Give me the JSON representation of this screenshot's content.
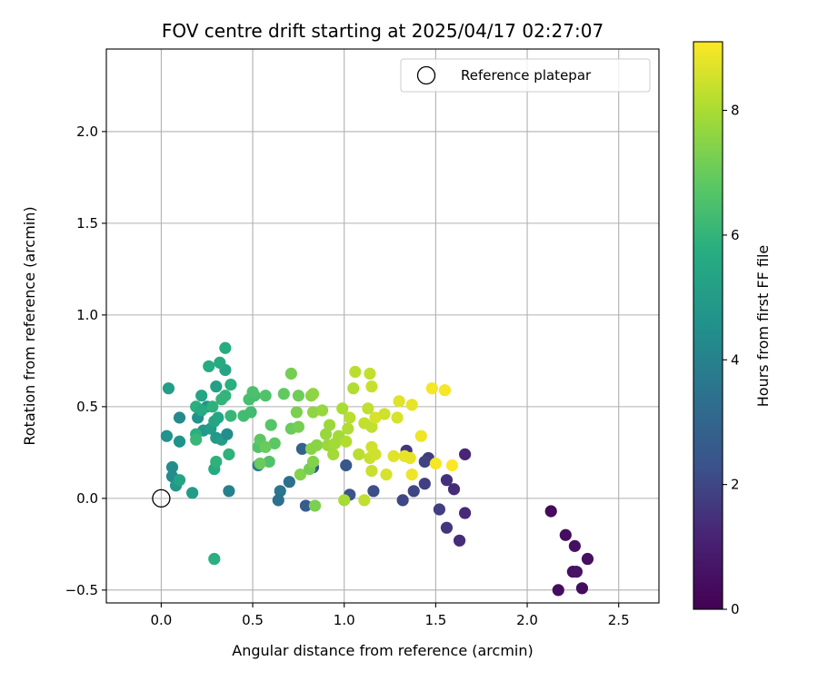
{
  "chart_data": {
    "type": "scatter",
    "title": "FOV centre drift starting at 2025/04/17 02:27:07",
    "xlabel": "Angular distance from reference (arcmin)",
    "ylabel": "Rotation from reference (arcmin)",
    "xlim": [
      -0.3,
      2.72
    ],
    "ylim": [
      -0.57,
      2.45
    ],
    "xticks": [
      "0.0",
      "0.5",
      "1.0",
      "1.5",
      "2.0",
      "2.5"
    ],
    "xtick_values": [
      0,
      0.5,
      1.0,
      1.5,
      2.0,
      2.5
    ],
    "yticks": [
      "−0.5",
      "0.0",
      "0.5",
      "1.0",
      "1.5",
      "2.0"
    ],
    "ytick_values": [
      -0.5,
      0,
      0.5,
      1.0,
      1.5,
      2.0
    ],
    "grid": true,
    "legend": {
      "placement": "top-right",
      "entries": [
        "Reference platepar"
      ]
    },
    "reference_point": {
      "x": 0.0,
      "y": 0.0
    },
    "colorbar": {
      "label": "Hours from first FF file",
      "range": [
        0,
        9.1
      ],
      "ticks": [
        "0",
        "2",
        "4",
        "6",
        "8"
      ],
      "tick_values": [
        0,
        2,
        4,
        6,
        8
      ],
      "colormap": "viridis"
    },
    "points": [
      {
        "x": 2.13,
        "y": -0.07,
        "t": 0.3
      },
      {
        "x": 2.21,
        "y": -0.2,
        "t": 0.4
      },
      {
        "x": 2.26,
        "y": -0.26,
        "t": 0.5
      },
      {
        "x": 2.33,
        "y": -0.33,
        "t": 0.5
      },
      {
        "x": 2.25,
        "y": -0.4,
        "t": 0.5
      },
      {
        "x": 2.27,
        "y": -0.4,
        "t": 0.6
      },
      {
        "x": 2.17,
        "y": -0.5,
        "t": 0.4
      },
      {
        "x": 2.3,
        "y": -0.49,
        "t": 0.4
      },
      {
        "x": 1.66,
        "y": 0.24,
        "t": 1.2
      },
      {
        "x": 1.66,
        "y": -0.08,
        "t": 1.3
      },
      {
        "x": 1.63,
        "y": -0.23,
        "t": 1.4
      },
      {
        "x": 1.6,
        "y": 0.05,
        "t": 1.4
      },
      {
        "x": 1.56,
        "y": 0.1,
        "t": 1.5
      },
      {
        "x": 1.56,
        "y": -0.16,
        "t": 1.6
      },
      {
        "x": 1.52,
        "y": -0.06,
        "t": 1.8
      },
      {
        "x": 1.46,
        "y": 0.22,
        "t": 1.7
      },
      {
        "x": 1.44,
        "y": 0.2,
        "t": 1.9
      },
      {
        "x": 1.44,
        "y": 0.08,
        "t": 1.8
      },
      {
        "x": 1.38,
        "y": 0.04,
        "t": 2.0
      },
      {
        "x": 1.34,
        "y": 0.26,
        "t": 1.6
      },
      {
        "x": 1.32,
        "y": -0.01,
        "t": 2.0
      },
      {
        "x": 1.16,
        "y": 0.04,
        "t": 2.2
      },
      {
        "x": 1.03,
        "y": 0.02,
        "t": 2.4
      },
      {
        "x": 1.01,
        "y": 0.18,
        "t": 2.5
      },
      {
        "x": 0.83,
        "y": 0.17,
        "t": 2.6
      },
      {
        "x": 0.79,
        "y": -0.04,
        "t": 2.7
      },
      {
        "x": 0.77,
        "y": 0.27,
        "t": 2.9
      },
      {
        "x": 0.7,
        "y": 0.09,
        "t": 3.4
      },
      {
        "x": 0.65,
        "y": 0.04,
        "t": 3.6
      },
      {
        "x": 0.64,
        "y": -0.01,
        "t": 3.4
      },
      {
        "x": 0.53,
        "y": 0.18,
        "t": 3.7
      },
      {
        "x": 0.37,
        "y": 0.04,
        "t": 4.0
      },
      {
        "x": 0.1,
        "y": 0.44,
        "t": 4.3
      },
      {
        "x": 0.06,
        "y": 0.12,
        "t": 4.3
      },
      {
        "x": 0.06,
        "y": 0.17,
        "t": 4.4
      },
      {
        "x": 0.03,
        "y": 0.34,
        "t": 4.6
      },
      {
        "x": 0.1,
        "y": 0.31,
        "t": 4.6
      },
      {
        "x": 0.08,
        "y": 0.07,
        "t": 4.8
      },
      {
        "x": 0.17,
        "y": 0.03,
        "t": 5.0
      },
      {
        "x": 0.04,
        "y": 0.6,
        "t": 5.1
      },
      {
        "x": 0.2,
        "y": 0.44,
        "t": 4.6
      },
      {
        "x": 0.25,
        "y": 0.5,
        "t": 4.7
      },
      {
        "x": 0.23,
        "y": 0.37,
        "t": 4.8
      },
      {
        "x": 0.27,
        "y": 0.38,
        "t": 5.0
      },
      {
        "x": 0.3,
        "y": 0.33,
        "t": 4.9
      },
      {
        "x": 0.33,
        "y": 0.32,
        "t": 5.0
      },
      {
        "x": 0.36,
        "y": 0.35,
        "t": 4.4
      },
      {
        "x": 0.1,
        "y": 0.1,
        "t": 5.3
      },
      {
        "x": 0.3,
        "y": 0.61,
        "t": 5.2
      },
      {
        "x": 0.22,
        "y": 0.56,
        "t": 5.4
      },
      {
        "x": 0.29,
        "y": 0.42,
        "t": 5.4
      },
      {
        "x": 0.31,
        "y": 0.44,
        "t": 5.4
      },
      {
        "x": 0.35,
        "y": 0.7,
        "t": 5.4
      },
      {
        "x": 0.32,
        "y": 0.74,
        "t": 5.6
      },
      {
        "x": 0.26,
        "y": 0.72,
        "t": 5.7
      },
      {
        "x": 0.35,
        "y": 0.82,
        "t": 5.7
      },
      {
        "x": 0.38,
        "y": 0.62,
        "t": 5.8
      },
      {
        "x": 0.19,
        "y": 0.5,
        "t": 5.8
      },
      {
        "x": 0.22,
        "y": 0.48,
        "t": 5.6
      },
      {
        "x": 0.19,
        "y": 0.35,
        "t": 5.8
      },
      {
        "x": 0.29,
        "y": 0.16,
        "t": 5.6
      },
      {
        "x": 0.3,
        "y": 0.2,
        "t": 5.9
      },
      {
        "x": 0.37,
        "y": 0.24,
        "t": 5.9
      },
      {
        "x": 0.28,
        "y": 0.5,
        "t": 5.9
      },
      {
        "x": 0.33,
        "y": 0.54,
        "t": 6.0
      },
      {
        "x": 0.35,
        "y": 0.56,
        "t": 6.0
      },
      {
        "x": 0.19,
        "y": 0.32,
        "t": 6.1
      },
      {
        "x": 0.29,
        "y": -0.33,
        "t": 5.8
      },
      {
        "x": 0.38,
        "y": 0.45,
        "t": 6.1
      },
      {
        "x": 0.45,
        "y": 0.45,
        "t": 6.3
      },
      {
        "x": 0.49,
        "y": 0.47,
        "t": 6.3
      },
      {
        "x": 0.48,
        "y": 0.54,
        "t": 6.4
      },
      {
        "x": 0.51,
        "y": 0.56,
        "t": 6.4
      },
      {
        "x": 0.5,
        "y": 0.58,
        "t": 6.5
      },
      {
        "x": 0.57,
        "y": 0.56,
        "t": 6.6
      },
      {
        "x": 0.6,
        "y": 0.4,
        "t": 6.7
      },
      {
        "x": 0.62,
        "y": 0.3,
        "t": 6.8
      },
      {
        "x": 0.59,
        "y": 0.2,
        "t": 6.6
      },
      {
        "x": 0.53,
        "y": 0.28,
        "t": 6.6
      },
      {
        "x": 0.54,
        "y": 0.32,
        "t": 6.8
      },
      {
        "x": 0.57,
        "y": 0.28,
        "t": 7.0
      },
      {
        "x": 0.54,
        "y": 0.19,
        "t": 7.0
      },
      {
        "x": 0.67,
        "y": 0.57,
        "t": 6.9
      },
      {
        "x": 0.71,
        "y": 0.68,
        "t": 7.2
      },
      {
        "x": 0.75,
        "y": 0.56,
        "t": 7.1
      },
      {
        "x": 0.71,
        "y": 0.38,
        "t": 7.0
      },
      {
        "x": 0.74,
        "y": 0.47,
        "t": 7.3
      },
      {
        "x": 0.75,
        "y": 0.39,
        "t": 7.2
      },
      {
        "x": 0.76,
        "y": 0.13,
        "t": 7.4
      },
      {
        "x": 0.81,
        "y": 0.16,
        "t": 7.2
      },
      {
        "x": 0.83,
        "y": 0.2,
        "t": 7.4
      },
      {
        "x": 0.84,
        "y": -0.04,
        "t": 7.3
      },
      {
        "x": 0.82,
        "y": 0.27,
        "t": 7.5
      },
      {
        "x": 0.85,
        "y": 0.29,
        "t": 7.5
      },
      {
        "x": 0.82,
        "y": 0.56,
        "t": 7.5
      },
      {
        "x": 0.83,
        "y": 0.57,
        "t": 7.6
      },
      {
        "x": 0.83,
        "y": 0.47,
        "t": 7.6
      },
      {
        "x": 0.88,
        "y": 0.48,
        "t": 7.7
      },
      {
        "x": 0.9,
        "y": 0.35,
        "t": 7.7
      },
      {
        "x": 0.91,
        "y": 0.29,
        "t": 7.8
      },
      {
        "x": 0.92,
        "y": 0.4,
        "t": 7.8
      },
      {
        "x": 0.94,
        "y": 0.24,
        "t": 7.9
      },
      {
        "x": 0.95,
        "y": 0.3,
        "t": 7.9
      },
      {
        "x": 0.97,
        "y": 0.34,
        "t": 7.9
      },
      {
        "x": 0.99,
        "y": 0.49,
        "t": 8.0
      },
      {
        "x": 1.0,
        "y": -0.01,
        "t": 8.0
      },
      {
        "x": 1.01,
        "y": 0.31,
        "t": 8.1
      },
      {
        "x": 1.02,
        "y": 0.38,
        "t": 8.1
      },
      {
        "x": 1.03,
        "y": 0.44,
        "t": 8.2
      },
      {
        "x": 1.05,
        "y": 0.6,
        "t": 8.1
      },
      {
        "x": 1.06,
        "y": 0.69,
        "t": 8.2
      },
      {
        "x": 1.08,
        "y": 0.24,
        "t": 8.2
      },
      {
        "x": 1.11,
        "y": 0.41,
        "t": 8.3
      },
      {
        "x": 1.11,
        "y": -0.01,
        "t": 8.3
      },
      {
        "x": 1.13,
        "y": 0.49,
        "t": 8.3
      },
      {
        "x": 1.14,
        "y": 0.68,
        "t": 8.3
      },
      {
        "x": 1.15,
        "y": 0.61,
        "t": 8.4
      },
      {
        "x": 1.15,
        "y": 0.39,
        "t": 8.3
      },
      {
        "x": 1.14,
        "y": 0.22,
        "t": 8.4
      },
      {
        "x": 1.15,
        "y": 0.15,
        "t": 8.4
      },
      {
        "x": 1.15,
        "y": 0.28,
        "t": 8.5
      },
      {
        "x": 1.17,
        "y": 0.24,
        "t": 8.5
      },
      {
        "x": 1.17,
        "y": 0.44,
        "t": 8.6
      },
      {
        "x": 1.22,
        "y": 0.46,
        "t": 8.5
      },
      {
        "x": 1.23,
        "y": 0.13,
        "t": 8.6
      },
      {
        "x": 1.27,
        "y": 0.23,
        "t": 8.7
      },
      {
        "x": 1.29,
        "y": 0.44,
        "t": 8.6
      },
      {
        "x": 1.3,
        "y": 0.53,
        "t": 8.7
      },
      {
        "x": 1.33,
        "y": 0.23,
        "t": 8.8
      },
      {
        "x": 1.36,
        "y": 0.22,
        "t": 8.8
      },
      {
        "x": 1.37,
        "y": 0.51,
        "t": 8.8
      },
      {
        "x": 1.37,
        "y": 0.13,
        "t": 8.9
      },
      {
        "x": 1.42,
        "y": 0.34,
        "t": 8.9
      },
      {
        "x": 1.48,
        "y": 0.6,
        "t": 9.0
      },
      {
        "x": 1.5,
        "y": 0.19,
        "t": 9.0
      },
      {
        "x": 1.55,
        "y": 0.59,
        "t": 9.0
      },
      {
        "x": 1.59,
        "y": 0.18,
        "t": 9.1
      }
    ]
  }
}
